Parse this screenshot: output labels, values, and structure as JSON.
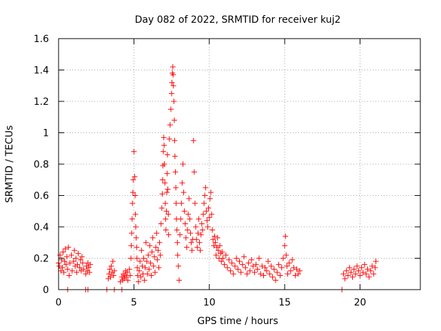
{
  "chart_data": {
    "type": "scatter",
    "title": "Day 082 of 2022, SRMTID for receiver kuj2",
    "xlabel": "GPS time / hours",
    "ylabel": "SRMTID / TECUs",
    "xlim": [
      0,
      24
    ],
    "ylim": [
      0,
      1.6
    ],
    "xticks": [
      0,
      5,
      10,
      15,
      20
    ],
    "xtick_labels": [
      "0",
      "5",
      "10",
      "15",
      "20"
    ],
    "yticks": [
      0,
      0.2,
      0.4,
      0.6,
      0.8,
      1.0,
      1.2,
      1.4,
      1.6
    ],
    "ytick_labels": [
      "0",
      "0.2",
      "0.4",
      "0.6",
      "0.8",
      "1",
      "1.2",
      "1.4",
      "1.6"
    ],
    "grid": true,
    "marker": "+",
    "color": "#ff0000",
    "series": [
      {
        "name": "SRMTID",
        "points": [
          [
            0.0,
            0.17
          ],
          [
            0.05,
            0.15
          ],
          [
            0.1,
            0.22
          ],
          [
            0.15,
            0.12
          ],
          [
            0.2,
            0.19
          ],
          [
            0.25,
            0.14
          ],
          [
            0.3,
            0.24
          ],
          [
            0.35,
            0.11
          ],
          [
            0.4,
            0.18
          ],
          [
            0.45,
            0.26
          ],
          [
            0.5,
            0.16
          ],
          [
            0.55,
            0.21
          ],
          [
            0.6,
            0.13
          ],
          [
            0.65,
            0.27
          ],
          [
            0.7,
            0.09
          ],
          [
            0.75,
            0.17
          ],
          [
            0.85,
            0.22
          ],
          [
            0.9,
            0.12
          ],
          [
            1.0,
            0.18
          ],
          [
            1.05,
            0.25
          ],
          [
            1.1,
            0.15
          ],
          [
            1.15,
            0.2
          ],
          [
            1.2,
            0.11
          ],
          [
            1.25,
            0.16
          ],
          [
            1.3,
            0.23
          ],
          [
            1.4,
            0.14
          ],
          [
            1.45,
            0.19
          ],
          [
            1.5,
            0.12
          ],
          [
            1.55,
            0.21
          ],
          [
            1.6,
            0.17
          ],
          [
            1.65,
            0.13
          ],
          [
            1.8,
            0.1
          ],
          [
            1.85,
            0.15
          ],
          [
            1.9,
            0.12
          ],
          [
            1.95,
            0.17
          ],
          [
            2.0,
            0.14
          ],
          [
            2.05,
            0.11
          ],
          [
            2.1,
            0.16
          ],
          [
            3.3,
            0.07
          ],
          [
            3.35,
            0.1
          ],
          [
            3.4,
            0.13
          ],
          [
            3.45,
            0.08
          ],
          [
            3.5,
            0.15
          ],
          [
            3.55,
            0.11
          ],
          [
            3.6,
            0.18
          ],
          [
            3.65,
            0.09
          ],
          [
            3.7,
            0.12
          ],
          [
            4.1,
            0.05
          ],
          [
            4.2,
            0.08
          ],
          [
            4.25,
            0.06
          ],
          [
            4.3,
            0.1
          ],
          [
            4.35,
            0.07
          ],
          [
            4.4,
            0.09
          ],
          [
            4.45,
            0.12
          ],
          [
            4.5,
            0.08
          ],
          [
            4.55,
            0.11
          ],
          [
            4.6,
            0.06
          ],
          [
            4.7,
            0.13
          ],
          [
            4.75,
            0.09
          ],
          [
            4.8,
            0.2
          ],
          [
            4.82,
            0.28
          ],
          [
            4.85,
            0.36
          ],
          [
            4.88,
            0.45
          ],
          [
            4.9,
            0.55
          ],
          [
            4.93,
            0.62
          ],
          [
            4.95,
            0.7
          ],
          [
            5.0,
            0.88
          ],
          [
            5.05,
            0.72
          ],
          [
            5.08,
            0.6
          ],
          [
            5.1,
            0.48
          ],
          [
            5.12,
            0.4
          ],
          [
            5.15,
            0.33
          ],
          [
            5.18,
            0.27
          ],
          [
            5.2,
            0.2
          ],
          [
            5.22,
            0.14
          ],
          [
            5.25,
            0.09
          ],
          [
            5.3,
            0.05
          ],
          [
            5.35,
            0.12
          ],
          [
            5.4,
            0.18
          ],
          [
            5.45,
            0.08
          ],
          [
            5.5,
            0.25
          ],
          [
            5.55,
            0.15
          ],
          [
            5.6,
            0.1
          ],
          [
            5.65,
            0.2
          ],
          [
            5.7,
            0.06
          ],
          [
            5.75,
            0.14
          ],
          [
            5.8,
            0.3
          ],
          [
            5.85,
            0.18
          ],
          [
            5.9,
            0.1
          ],
          [
            5.95,
            0.22
          ],
          [
            6.0,
            0.13
          ],
          [
            6.05,
            0.28
          ],
          [
            6.1,
            0.17
          ],
          [
            6.15,
            0.09
          ],
          [
            6.2,
            0.24
          ],
          [
            6.25,
            0.33
          ],
          [
            6.3,
            0.15
          ],
          [
            6.35,
            0.21
          ],
          [
            6.4,
            0.11
          ],
          [
            6.45,
            0.27
          ],
          [
            6.5,
            0.36
          ],
          [
            6.55,
            0.19
          ],
          [
            6.6,
            0.25
          ],
          [
            6.65,
            0.14
          ],
          [
            6.7,
            0.3
          ],
          [
            6.75,
            0.22
          ],
          [
            6.8,
            0.42
          ],
          [
            6.85,
            0.52
          ],
          [
            6.88,
            0.61
          ],
          [
            6.9,
            0.7
          ],
          [
            6.92,
            0.79
          ],
          [
            6.95,
            0.88
          ],
          [
            6.98,
            0.97
          ],
          [
            7.0,
            0.92
          ],
          [
            7.02,
            0.8
          ],
          [
            7.05,
            0.68
          ],
          [
            7.08,
            0.55
          ],
          [
            7.1,
            0.45
          ],
          [
            7.12,
            0.38
          ],
          [
            7.15,
            0.5
          ],
          [
            7.18,
            0.62
          ],
          [
            7.2,
            0.74
          ],
          [
            7.22,
            0.86
          ],
          [
            7.25,
            0.64
          ],
          [
            7.28,
            0.48
          ],
          [
            7.3,
            0.35
          ],
          [
            7.35,
            0.96
          ],
          [
            7.4,
            1.05
          ],
          [
            7.45,
            1.15
          ],
          [
            7.5,
            1.25
          ],
          [
            7.52,
            1.32
          ],
          [
            7.55,
            1.38
          ],
          [
            7.58,
            1.42
          ],
          [
            7.6,
            1.37
          ],
          [
            7.62,
            1.3
          ],
          [
            7.65,
            1.2
          ],
          [
            7.68,
            1.08
          ],
          [
            7.7,
            0.95
          ],
          [
            7.72,
            0.85
          ],
          [
            7.75,
            0.75
          ],
          [
            7.78,
            0.65
          ],
          [
            7.8,
            0.55
          ],
          [
            7.82,
            0.45
          ],
          [
            7.85,
            0.38
          ],
          [
            7.88,
            0.3
          ],
          [
            7.9,
            0.22
          ],
          [
            7.95,
            0.15
          ],
          [
            8.0,
            0.06
          ],
          [
            8.05,
            0.35
          ],
          [
            8.1,
            0.45
          ],
          [
            8.15,
            0.55
          ],
          [
            8.2,
            0.68
          ],
          [
            8.25,
            0.8
          ],
          [
            8.3,
            0.62
          ],
          [
            8.35,
            0.5
          ],
          [
            8.4,
            0.42
          ],
          [
            8.45,
            0.33
          ],
          [
            8.5,
            0.27
          ],
          [
            8.55,
            0.38
          ],
          [
            8.6,
            0.48
          ],
          [
            8.65,
            0.58
          ],
          [
            8.7,
            0.45
          ],
          [
            8.75,
            0.36
          ],
          [
            8.8,
            0.3
          ],
          [
            8.85,
            0.25
          ],
          [
            8.9,
            0.32
          ],
          [
            8.95,
            0.95
          ],
          [
            9.0,
            0.75
          ],
          [
            9.05,
            0.55
          ],
          [
            9.1,
            0.4
          ],
          [
            9.15,
            0.32
          ],
          [
            9.2,
            0.27
          ],
          [
            9.25,
            0.36
          ],
          [
            9.3,
            0.45
          ],
          [
            9.35,
            0.3
          ],
          [
            9.4,
            0.25
          ],
          [
            9.45,
            0.35
          ],
          [
            9.5,
            0.42
          ],
          [
            9.55,
            0.38
          ],
          [
            9.6,
            0.48
          ],
          [
            9.65,
            0.55
          ],
          [
            9.7,
            0.6
          ],
          [
            9.75,
            0.65
          ],
          [
            9.8,
            0.5
          ],
          [
            9.85,
            0.44
          ],
          [
            9.9,
            0.4
          ],
          [
            9.95,
            0.52
          ],
          [
            10.0,
            0.46
          ],
          [
            10.05,
            0.58
          ],
          [
            10.1,
            0.62
          ],
          [
            10.15,
            0.48
          ],
          [
            10.2,
            0.38
          ],
          [
            10.25,
            0.32
          ],
          [
            10.3,
            0.28
          ],
          [
            10.35,
            0.34
          ],
          [
            10.4,
            0.3
          ],
          [
            10.45,
            0.22
          ],
          [
            10.5,
            0.27
          ],
          [
            10.55,
            0.33
          ],
          [
            10.6,
            0.25
          ],
          [
            10.65,
            0.2
          ],
          [
            10.7,
            0.28
          ],
          [
            10.75,
            0.23
          ],
          [
            10.8,
            0.18
          ],
          [
            10.85,
            0.24
          ],
          [
            10.9,
            0.2
          ],
          [
            11.0,
            0.16
          ],
          [
            11.1,
            0.22
          ],
          [
            11.2,
            0.14
          ],
          [
            11.3,
            0.19
          ],
          [
            11.4,
            0.12
          ],
          [
            11.5,
            0.17
          ],
          [
            11.6,
            0.1
          ],
          [
            11.7,
            0.15
          ],
          [
            11.8,
            0.2
          ],
          [
            11.9,
            0.13
          ],
          [
            12.0,
            0.18
          ],
          [
            12.1,
            0.11
          ],
          [
            12.2,
            0.16
          ],
          [
            12.3,
            0.21
          ],
          [
            12.4,
            0.14
          ],
          [
            12.5,
            0.1
          ],
          [
            12.6,
            0.17
          ],
          [
            12.7,
            0.12
          ],
          [
            12.8,
            0.19
          ],
          [
            12.9,
            0.15
          ],
          [
            13.0,
            0.11
          ],
          [
            13.1,
            0.16
          ],
          [
            13.2,
            0.13
          ],
          [
            13.3,
            0.2
          ],
          [
            13.4,
            0.1
          ],
          [
            13.5,
            0.15
          ],
          [
            13.6,
            0.09
          ],
          [
            13.7,
            0.14
          ],
          [
            13.8,
            0.12
          ],
          [
            13.9,
            0.18
          ],
          [
            14.0,
            0.1
          ],
          [
            14.1,
            0.15
          ],
          [
            14.2,
            0.08
          ],
          [
            14.3,
            0.13
          ],
          [
            14.4,
            0.06
          ],
          [
            14.5,
            0.11
          ],
          [
            14.6,
            0.16
          ],
          [
            14.7,
            0.09
          ],
          [
            14.8,
            0.14
          ],
          [
            14.9,
            0.2
          ],
          [
            15.0,
            0.28
          ],
          [
            15.05,
            0.34
          ],
          [
            15.1,
            0.22
          ],
          [
            15.15,
            0.15
          ],
          [
            15.2,
            0.1
          ],
          [
            15.3,
            0.17
          ],
          [
            15.4,
            0.12
          ],
          [
            15.5,
            0.19
          ],
          [
            15.6,
            0.14
          ],
          [
            15.7,
            0.09
          ],
          [
            15.8,
            0.13
          ],
          [
            15.9,
            0.1
          ],
          [
            16.0,
            0.12
          ],
          [
            18.9,
            0.1
          ],
          [
            19.0,
            0.07
          ],
          [
            19.1,
            0.12
          ],
          [
            19.2,
            0.09
          ],
          [
            19.3,
            0.14
          ],
          [
            19.4,
            0.11
          ],
          [
            19.5,
            0.08
          ],
          [
            19.6,
            0.13
          ],
          [
            19.7,
            0.1
          ],
          [
            19.8,
            0.15
          ],
          [
            19.9,
            0.12
          ],
          [
            20.0,
            0.09
          ],
          [
            20.1,
            0.14
          ],
          [
            20.2,
            0.11
          ],
          [
            20.3,
            0.16
          ],
          [
            20.4,
            0.1
          ],
          [
            20.5,
            0.13
          ],
          [
            20.6,
            0.08
          ],
          [
            20.7,
            0.12
          ],
          [
            20.8,
            0.15
          ],
          [
            20.9,
            0.1
          ],
          [
            21.0,
            0.14
          ],
          [
            21.05,
            0.18
          ],
          [
            0.6,
            0.0
          ],
          [
            1.8,
            0.0
          ],
          [
            1.95,
            0.0
          ],
          [
            3.2,
            0.0
          ],
          [
            3.7,
            0.0
          ],
          [
            4.2,
            0.0
          ],
          [
            18.8,
            0.0
          ]
        ]
      }
    ]
  }
}
